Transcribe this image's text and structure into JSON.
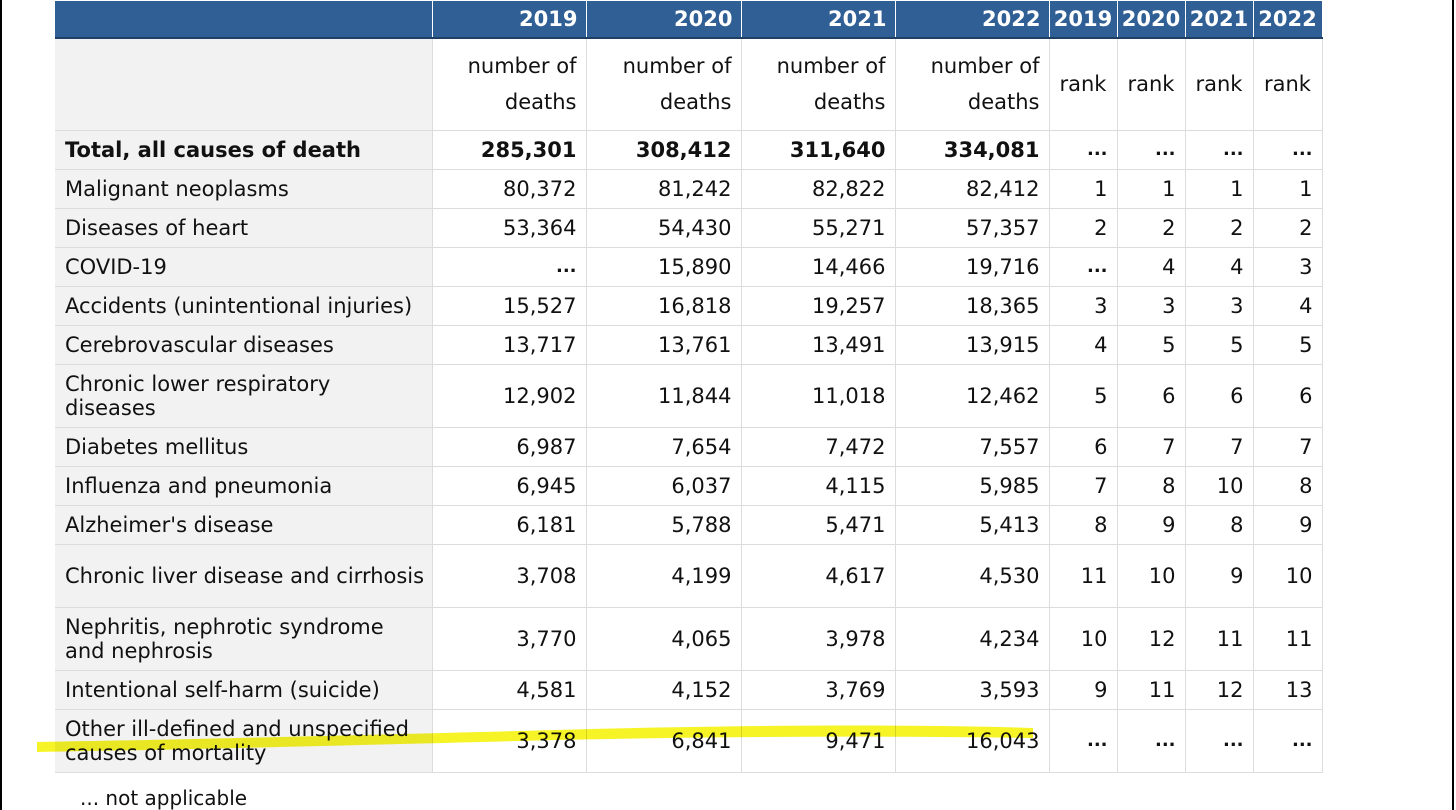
{
  "years": [
    "2019",
    "2020",
    "2021",
    "2022"
  ],
  "units": {
    "deaths": "number of deaths",
    "rank": "rank"
  },
  "not_applicable_symbol": "...",
  "rows": [
    {
      "cause": "Total, all causes of death",
      "bold": true,
      "deaths": [
        "285,301",
        "308,412",
        "311,640",
        "334,081"
      ],
      "ranks": [
        "...",
        "...",
        "...",
        "..."
      ]
    },
    {
      "cause": "Malignant neoplasms",
      "deaths": [
        "80,372",
        "81,242",
        "82,822",
        "82,412"
      ],
      "ranks": [
        "1",
        "1",
        "1",
        "1"
      ]
    },
    {
      "cause": "Diseases of heart",
      "deaths": [
        "53,364",
        "54,430",
        "55,271",
        "57,357"
      ],
      "ranks": [
        "2",
        "2",
        "2",
        "2"
      ]
    },
    {
      "cause": "COVID-19",
      "deaths": [
        "...",
        "15,890",
        "14,466",
        "19,716"
      ],
      "ranks": [
        "...",
        "4",
        "4",
        "3"
      ]
    },
    {
      "cause": "Accidents (unintentional injuries)",
      "deaths": [
        "15,527",
        "16,818",
        "19,257",
        "18,365"
      ],
      "ranks": [
        "3",
        "3",
        "3",
        "4"
      ]
    },
    {
      "cause": "Cerebrovascular diseases",
      "deaths": [
        "13,717",
        "13,761",
        "13,491",
        "13,915"
      ],
      "ranks": [
        "4",
        "5",
        "5",
        "5"
      ]
    },
    {
      "cause": "Chronic lower respiratory diseases",
      "deaths": [
        "12,902",
        "11,844",
        "11,018",
        "12,462"
      ],
      "ranks": [
        "5",
        "6",
        "6",
        "6"
      ]
    },
    {
      "cause": "Diabetes mellitus",
      "deaths": [
        "6,987",
        "7,654",
        "7,472",
        "7,557"
      ],
      "ranks": [
        "6",
        "7",
        "7",
        "7"
      ]
    },
    {
      "cause": "Influenza and pneumonia",
      "deaths": [
        "6,945",
        "6,037",
        "4,115",
        "5,985"
      ],
      "ranks": [
        "7",
        "8",
        "10",
        "8"
      ]
    },
    {
      "cause": "Alzheimer's disease",
      "deaths": [
        "6,181",
        "5,788",
        "5,471",
        "5,413"
      ],
      "ranks": [
        "8",
        "9",
        "8",
        "9"
      ]
    },
    {
      "cause": "Chronic liver disease and cirrhosis",
      "deaths": [
        "3,708",
        "4,199",
        "4,617",
        "4,530"
      ],
      "ranks": [
        "11",
        "10",
        "9",
        "10"
      ]
    },
    {
      "cause": "Nephritis, nephrotic syndrome and nephrosis",
      "deaths": [
        "3,770",
        "4,065",
        "3,978",
        "4,234"
      ],
      "ranks": [
        "10",
        "12",
        "11",
        "11"
      ]
    },
    {
      "cause": "Intentional self-harm (suicide)",
      "deaths": [
        "4,581",
        "4,152",
        "3,769",
        "3,593"
      ],
      "ranks": [
        "9",
        "11",
        "12",
        "13"
      ]
    },
    {
      "cause": "Other ill-defined and unspecified causes of mortality",
      "deaths": [
        "3,378",
        "6,841",
        "9,471",
        "16,043"
      ],
      "ranks": [
        "...",
        "...",
        "...",
        "..."
      ],
      "highlighted": true
    }
  ],
  "footnote": "... not applicable",
  "colors": {
    "header_bg": "#2f5f95",
    "label_bg": "#f2f2f2",
    "highlight": "#f5f200"
  }
}
